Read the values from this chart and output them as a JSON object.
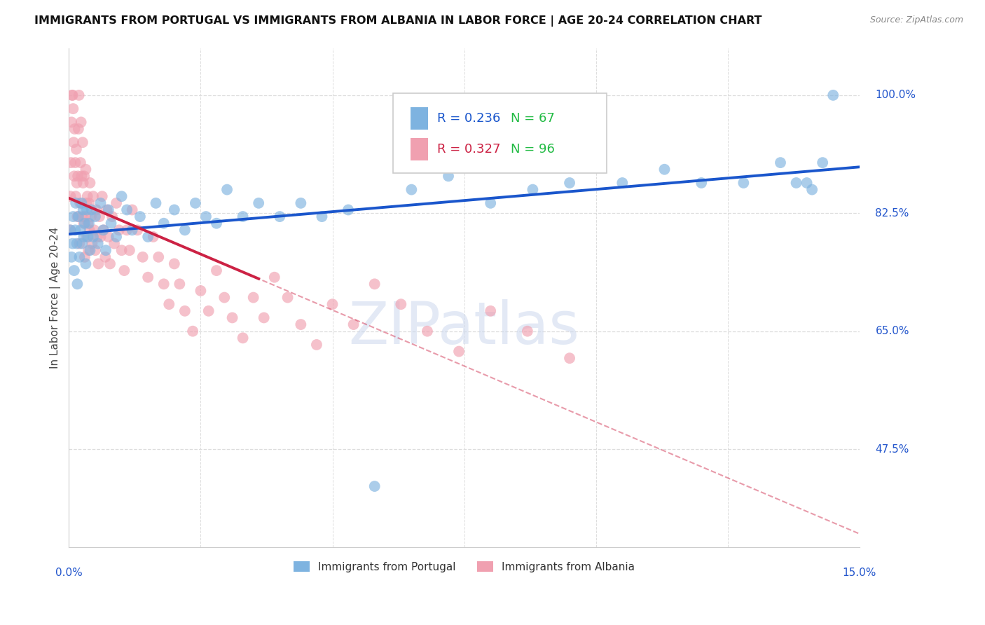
{
  "title": "IMMIGRANTS FROM PORTUGAL VS IMMIGRANTS FROM ALBANIA IN LABOR FORCE | AGE 20-24 CORRELATION CHART",
  "source": "Source: ZipAtlas.com",
  "ylabel": "In Labor Force | Age 20-24",
  "yticks": [
    0.475,
    0.65,
    0.825,
    1.0
  ],
  "ytick_labels": [
    "47.5%",
    "65.0%",
    "82.5%",
    "100.0%"
  ],
  "xmin": 0.0,
  "xmax": 0.15,
  "ymin": 0.33,
  "ymax": 1.07,
  "legend_portugal": "Immigrants from Portugal",
  "legend_albania": "Immigrants from Albania",
  "r_portugal": 0.236,
  "n_portugal": 67,
  "r_albania": 0.327,
  "n_albania": 96,
  "color_portugal": "#7eb3e0",
  "color_albania": "#f0a0b0",
  "line_color_portugal": "#1a56cc",
  "line_color_albania": "#cc2244",
  "watermark": "ZIPatlas",
  "portugal_x": [
    0.0003,
    0.0005,
    0.0007,
    0.0008,
    0.001,
    0.0012,
    0.0013,
    0.0015,
    0.0016,
    0.0018,
    0.002,
    0.0022,
    0.0024,
    0.0025,
    0.0027,
    0.0028,
    0.003,
    0.0032,
    0.0034,
    0.0036,
    0.0038,
    0.004,
    0.0043,
    0.0046,
    0.005,
    0.0055,
    0.006,
    0.0065,
    0.007,
    0.0075,
    0.008,
    0.009,
    0.01,
    0.011,
    0.012,
    0.0135,
    0.015,
    0.0165,
    0.018,
    0.02,
    0.022,
    0.024,
    0.026,
    0.028,
    0.03,
    0.033,
    0.036,
    0.04,
    0.044,
    0.048,
    0.053,
    0.058,
    0.065,
    0.072,
    0.08,
    0.088,
    0.095,
    0.105,
    0.113,
    0.12,
    0.128,
    0.135,
    0.138,
    0.14,
    0.141,
    0.143,
    0.145
  ],
  "portugal_y": [
    0.8,
    0.76,
    0.78,
    0.82,
    0.74,
    0.8,
    0.84,
    0.78,
    0.72,
    0.82,
    0.76,
    0.8,
    0.84,
    0.78,
    0.83,
    0.79,
    0.81,
    0.75,
    0.83,
    0.79,
    0.81,
    0.77,
    0.83,
    0.79,
    0.82,
    0.78,
    0.84,
    0.8,
    0.77,
    0.83,
    0.81,
    0.79,
    0.85,
    0.83,
    0.8,
    0.82,
    0.79,
    0.84,
    0.81,
    0.83,
    0.8,
    0.84,
    0.82,
    0.81,
    0.86,
    0.82,
    0.84,
    0.82,
    0.84,
    0.82,
    0.83,
    0.42,
    0.86,
    0.88,
    0.84,
    0.86,
    0.87,
    0.87,
    0.89,
    0.87,
    0.87,
    0.9,
    0.87,
    0.87,
    0.86,
    0.9,
    1.0
  ],
  "albania_x": [
    0.0002,
    0.0003,
    0.0004,
    0.0005,
    0.0006,
    0.0007,
    0.0008,
    0.0009,
    0.001,
    0.0011,
    0.0012,
    0.0013,
    0.0014,
    0.0015,
    0.0016,
    0.0017,
    0.0018,
    0.0019,
    0.002,
    0.0021,
    0.0022,
    0.0023,
    0.0024,
    0.0025,
    0.0026,
    0.0027,
    0.0028,
    0.0029,
    0.003,
    0.0031,
    0.0032,
    0.0033,
    0.0034,
    0.0035,
    0.0036,
    0.0037,
    0.0038,
    0.0039,
    0.004,
    0.0042,
    0.0044,
    0.0046,
    0.0048,
    0.005,
    0.0052,
    0.0054,
    0.0056,
    0.0058,
    0.006,
    0.0063,
    0.0066,
    0.0069,
    0.0072,
    0.0075,
    0.0078,
    0.0082,
    0.0086,
    0.009,
    0.0095,
    0.01,
    0.0105,
    0.011,
    0.0115,
    0.012,
    0.013,
    0.014,
    0.015,
    0.016,
    0.017,
    0.018,
    0.019,
    0.02,
    0.021,
    0.022,
    0.0235,
    0.025,
    0.0265,
    0.028,
    0.0295,
    0.031,
    0.033,
    0.035,
    0.037,
    0.039,
    0.0415,
    0.044,
    0.047,
    0.05,
    0.054,
    0.058,
    0.063,
    0.068,
    0.074,
    0.08,
    0.087,
    0.095
  ],
  "albania_y": [
    0.8,
    0.85,
    0.9,
    0.96,
    1.0,
    1.0,
    0.98,
    0.93,
    0.88,
    0.95,
    0.9,
    0.85,
    0.92,
    0.87,
    0.82,
    0.88,
    0.95,
    1.0,
    0.78,
    0.84,
    0.9,
    0.96,
    0.88,
    0.82,
    0.93,
    0.87,
    0.81,
    0.88,
    0.76,
    0.82,
    0.89,
    0.84,
    0.79,
    0.85,
    0.81,
    0.77,
    0.84,
    0.8,
    0.87,
    0.82,
    0.78,
    0.85,
    0.8,
    0.77,
    0.83,
    0.79,
    0.75,
    0.82,
    0.79,
    0.85,
    0.8,
    0.76,
    0.83,
    0.79,
    0.75,
    0.82,
    0.78,
    0.84,
    0.8,
    0.77,
    0.74,
    0.8,
    0.77,
    0.83,
    0.8,
    0.76,
    0.73,
    0.79,
    0.76,
    0.72,
    0.69,
    0.75,
    0.72,
    0.68,
    0.65,
    0.71,
    0.68,
    0.74,
    0.7,
    0.67,
    0.64,
    0.7,
    0.67,
    0.73,
    0.7,
    0.66,
    0.63,
    0.69,
    0.66,
    0.72,
    0.69,
    0.65,
    0.62,
    0.68,
    0.65,
    0.61
  ]
}
